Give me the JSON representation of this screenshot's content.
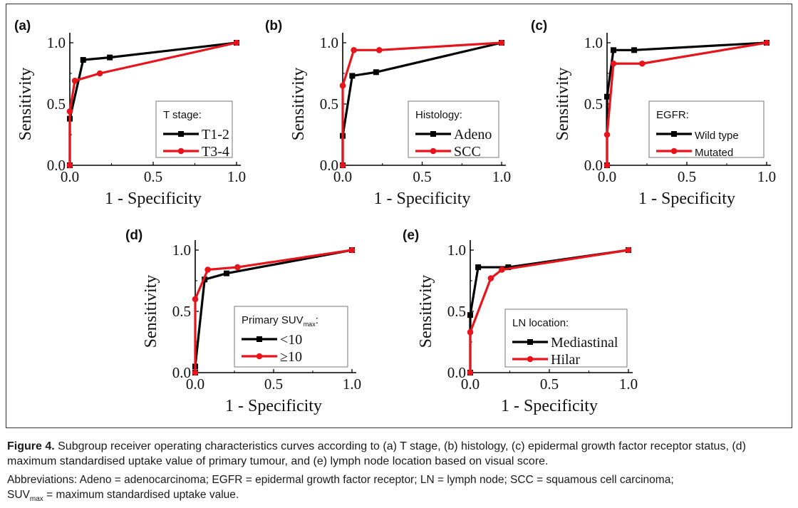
{
  "chart_data": [
    {
      "panel": "(a)",
      "type": "line",
      "xlabel": "1 - Specificity",
      "ylabel": "Sensitivity",
      "xlim": [
        0,
        1
      ],
      "ylim": [
        0,
        1
      ],
      "xticks": [
        "0.0",
        "0.5",
        "1.0"
      ],
      "yticks": [
        "0.0",
        "0.5",
        "1.0"
      ],
      "legend_title": "T stage:",
      "legend_title_sub": "",
      "legend_title_end": "",
      "series": [
        {
          "name": "T1-2",
          "color": "#000000",
          "x": [
            0.0,
            0.0,
            0.08,
            0.24,
            1.0
          ],
          "y": [
            0.0,
            0.38,
            0.86,
            0.88,
            1.0
          ]
        },
        {
          "name": "T3-4",
          "color": "#e8141c",
          "x": [
            0.0,
            0.0,
            0.03,
            0.18,
            1.0
          ],
          "y": [
            0.0,
            0.44,
            0.69,
            0.75,
            1.0
          ]
        }
      ]
    },
    {
      "panel": "(b)",
      "type": "line",
      "xlabel": "1 - Specificity",
      "ylabel": "Sensitivity",
      "xlim": [
        0,
        1
      ],
      "ylim": [
        0,
        1
      ],
      "xticks": [
        "0.0",
        "0.5",
        "1.0"
      ],
      "yticks": [
        "0.0",
        "0.5",
        "1.0"
      ],
      "legend_title": "Histology:",
      "legend_title_sub": "",
      "legend_title_end": "",
      "series": [
        {
          "name": "Adeno",
          "color": "#000000",
          "x": [
            0.0,
            0.0,
            0.06,
            0.21,
            1.0
          ],
          "y": [
            0.0,
            0.24,
            0.73,
            0.76,
            1.0
          ]
        },
        {
          "name": "SCC",
          "color": "#e8141c",
          "x": [
            0.0,
            0.0,
            0.07,
            0.23,
            1.0
          ],
          "y": [
            0.0,
            0.65,
            0.94,
            0.94,
            1.0
          ]
        }
      ]
    },
    {
      "panel": "(c)",
      "type": "line",
      "xlabel": "1 - Specificity",
      "ylabel": "Sensitivity",
      "xlim": [
        0,
        1
      ],
      "ylim": [
        0,
        1
      ],
      "xticks": [
        "0.0",
        "0.5",
        "1.0"
      ],
      "yticks": [
        "0.0",
        "0.5",
        "1.0"
      ],
      "legend_title": "EGFR:",
      "legend_title_sub": "",
      "legend_title_end": "",
      "series": [
        {
          "name": "Wild type",
          "color": "#000000",
          "x": [
            0.0,
            0.0,
            0.04,
            0.17,
            1.0
          ],
          "y": [
            0.0,
            0.56,
            0.94,
            0.94,
            1.0
          ]
        },
        {
          "name": "Mutated",
          "color": "#e8141c",
          "x": [
            0.0,
            0.0,
            0.04,
            0.22,
            1.0
          ],
          "y": [
            0.0,
            0.25,
            0.83,
            0.83,
            1.0
          ]
        }
      ]
    },
    {
      "panel": "(d)",
      "type": "line",
      "xlabel": "1 - Specificity",
      "ylabel": "Sensitivity",
      "xlim": [
        0,
        1
      ],
      "ylim": [
        0,
        1
      ],
      "xticks": [
        "0.0",
        "0.5",
        "1.0"
      ],
      "yticks": [
        "0.0",
        "0.5",
        "1.0"
      ],
      "legend_title": "Primary SUV",
      "legend_title_sub": "max",
      "legend_title_end": ":",
      "series": [
        {
          "name": "<10",
          "color": "#000000",
          "x": [
            0.0,
            0.0,
            0.06,
            0.2,
            1.0
          ],
          "y": [
            0.0,
            0.05,
            0.76,
            0.81,
            1.0
          ]
        },
        {
          "name": "≥10",
          "color": "#e8141c",
          "x": [
            0.0,
            0.0,
            0.08,
            0.27,
            1.0
          ],
          "y": [
            0.0,
            0.6,
            0.84,
            0.86,
            1.0
          ]
        }
      ]
    },
    {
      "panel": "(e)",
      "type": "line",
      "xlabel": "1 - Specificity",
      "ylabel": "Sensitivity",
      "xlim": [
        0,
        1
      ],
      "ylim": [
        0,
        1
      ],
      "xticks": [
        "0.0",
        "0.5",
        "1.0"
      ],
      "yticks": [
        "0.0",
        "0.5",
        "1.0"
      ],
      "legend_title": "LN location:",
      "legend_title_sub": "",
      "legend_title_end": "",
      "series": [
        {
          "name": "Mediastinal",
          "color": "#000000",
          "x": [
            0.0,
            0.0,
            0.05,
            0.24,
            1.0
          ],
          "y": [
            0.0,
            0.47,
            0.86,
            0.86,
            1.0
          ]
        },
        {
          "name": "Hilar",
          "color": "#e8141c",
          "x": [
            0.0,
            0.0,
            0.13,
            0.2,
            1.0
          ],
          "y": [
            0.0,
            0.33,
            0.77,
            0.84,
            1.0
          ]
        }
      ]
    }
  ],
  "caption": {
    "label": "Figure 4.",
    "text": " Subgroup receiver operating characteristics curves according to (a) T stage, (b) histology, (c) epidermal growth factor receptor status, (d) maximum standardised uptake value of primary tumour, and (e) lymph node location based on visual score.",
    "abbreviations": "Abbreviations: Adeno = adenocarcinoma; EGFR = epidermal growth factor receptor; LN = lymph node; SCC = squamous cell carcinoma;",
    "suv_prefix": "SUV",
    "suv_sub": "max",
    "suv_rest": " = maximum standardised uptake value."
  }
}
